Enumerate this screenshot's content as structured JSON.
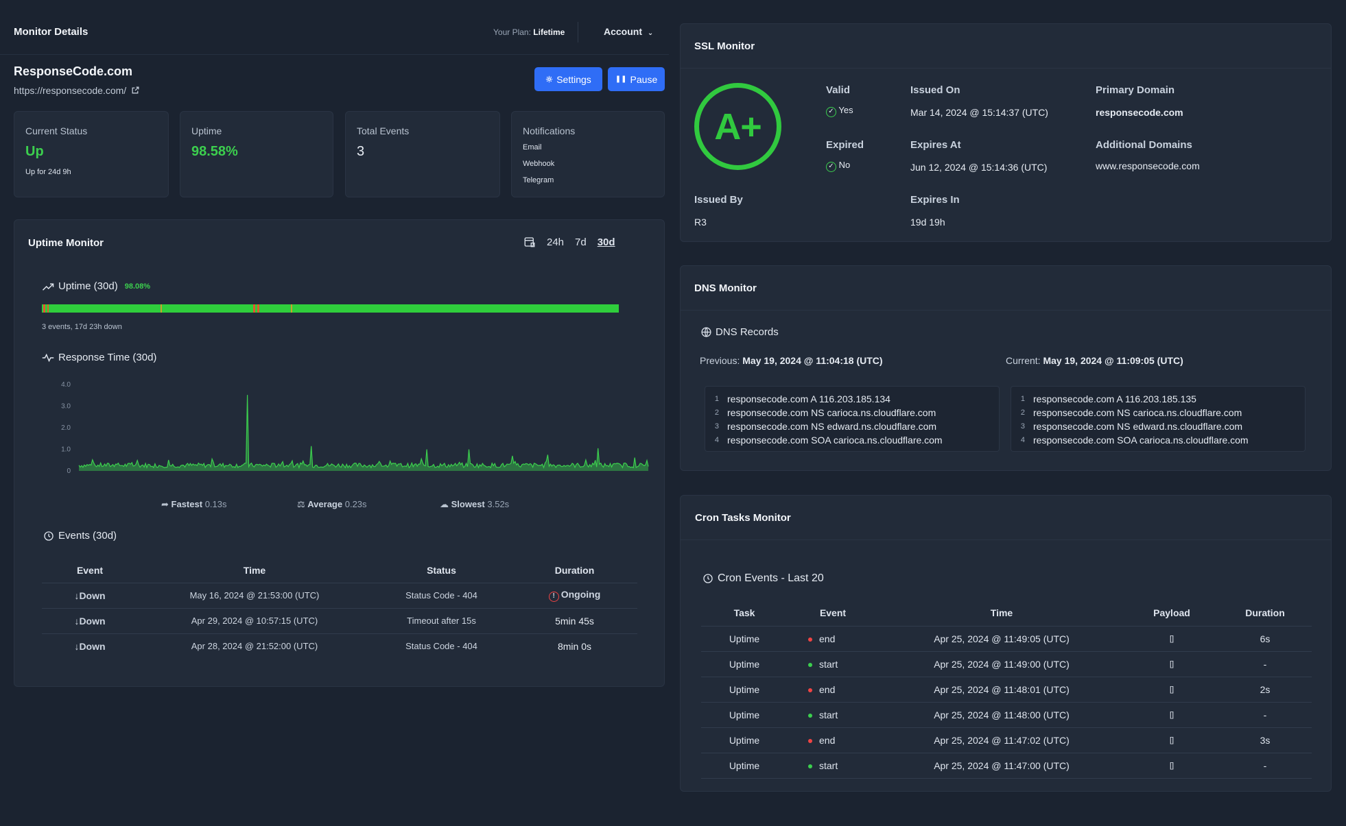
{
  "header": {
    "title": "Monitor Details",
    "plan_prefix": "Your Plan:",
    "plan_name": "Lifetime",
    "account_label": "Account"
  },
  "monitor": {
    "name": "ResponseCode.com",
    "url": "https://responsecode.com/",
    "settings_label": "Settings",
    "pause_label": "Pause"
  },
  "stats": {
    "current_status": {
      "label": "Current Status",
      "value": "Up",
      "sub": "Up for 24d 9h"
    },
    "uptime": {
      "label": "Uptime",
      "value": "98.58%"
    },
    "total_events": {
      "label": "Total Events",
      "value": "3"
    },
    "notifications": {
      "label": "Notifications",
      "items": [
        "Email",
        "Webhook",
        "Telegram"
      ]
    }
  },
  "uptime_monitor": {
    "title": "Uptime Monitor",
    "ranges": [
      "24h",
      "7d",
      "30d"
    ],
    "selected_range": "30d",
    "uptime_title": "Uptime (30d)",
    "uptime_pct": "98.08%",
    "uptime_fraction": 0.9808,
    "down_summary": "3 events, 17d 23h down",
    "response_title": "Response Time (30d)",
    "fastest_label": "Fastest",
    "fastest_value": "0.13s",
    "average_label": "Average",
    "average_value": "0.23s",
    "slowest_label": "Slowest",
    "slowest_value": "3.52s"
  },
  "chart_data": {
    "type": "area",
    "title": "Response Time (30d)",
    "ylim": [
      0,
      4.0
    ],
    "yticks": [
      "4.0",
      "3.0",
      "2.0",
      "1.0",
      "0"
    ],
    "color": "#3ccf4e",
    "spikes": [
      {
        "at": 0.297,
        "value": 3.52
      },
      {
        "at": 0.686,
        "value": 1.0
      },
      {
        "at": 0.408,
        "value": 1.15
      },
      {
        "at": 0.611,
        "value": 1.0
      },
      {
        "at": 0.911,
        "value": 1.05
      },
      {
        "at": 0.823,
        "value": 0.75
      },
      {
        "at": 0.762,
        "value": 0.7
      }
    ],
    "baseline": 0.25
  },
  "events": {
    "title": "Events (30d)",
    "headers": [
      "Event",
      "Time",
      "Status",
      "Duration"
    ],
    "rows": [
      {
        "event": "Down",
        "time": "May 16, 2024 @ 21:53:00 (UTC)",
        "status": "Status Code - 404",
        "duration": "Ongoing",
        "ongoing": true
      },
      {
        "event": "Down",
        "time": "Apr 29, 2024 @ 10:57:15 (UTC)",
        "status": "Timeout after 15s",
        "duration": "5min 45s",
        "ongoing": false
      },
      {
        "event": "Down",
        "time": "Apr 28, 2024 @ 21:52:00 (UTC)",
        "status": "Status Code - 404",
        "duration": "8min 0s",
        "ongoing": false
      }
    ]
  },
  "ssl": {
    "title": "SSL Monitor",
    "grade": "A+",
    "valid_label": "Valid",
    "valid_value": "Yes",
    "expired_label": "Expired",
    "expired_value": "No",
    "issued_on_label": "Issued On",
    "issued_on_value": "Mar 14, 2024 @ 15:14:37 (UTC)",
    "expires_at_label": "Expires At",
    "expires_at_value": "Jun 12, 2024 @ 15:14:36 (UTC)",
    "primary_domain_label": "Primary Domain",
    "primary_domain_value": "responsecode.com",
    "additional_domains_label": "Additional Domains",
    "additional_domains_value": "www.responsecode.com",
    "issued_by_label": "Issued By",
    "issued_by_value": "R3",
    "expires_in_label": "Expires In",
    "expires_in_value": "19d 19h"
  },
  "dns": {
    "title": "DNS Monitor",
    "records_title": "DNS Records",
    "previous_label": "Previous:",
    "previous_time": "May 19, 2024 @ 11:04:18 (UTC)",
    "current_label": "Current:",
    "current_time": "May 19, 2024 @ 11:09:05 (UTC)",
    "previous_records": [
      "responsecode.com A 116.203.185.134",
      "responsecode.com NS carioca.ns.cloudflare.com",
      "responsecode.com NS edward.ns.cloudflare.com",
      "responsecode.com SOA carioca.ns.cloudflare.com"
    ],
    "current_records": [
      "responsecode.com A 116.203.185.135",
      "responsecode.com NS carioca.ns.cloudflare.com",
      "responsecode.com NS edward.ns.cloudflare.com",
      "responsecode.com SOA carioca.ns.cloudflare.com"
    ]
  },
  "cron": {
    "title": "Cron Tasks Monitor",
    "events_title": "Cron Events - Last 20",
    "headers": [
      "Task",
      "Event",
      "Time",
      "Payload",
      "Duration"
    ],
    "rows": [
      {
        "task": "Uptime",
        "event": "end",
        "time": "Apr 25, 2024 @ 11:49:05 (UTC)",
        "payload": "[]",
        "duration": "6s"
      },
      {
        "task": "Uptime",
        "event": "start",
        "time": "Apr 25, 2024 @ 11:49:00 (UTC)",
        "payload": "[]",
        "duration": "-"
      },
      {
        "task": "Uptime",
        "event": "end",
        "time": "Apr 25, 2024 @ 11:48:01 (UTC)",
        "payload": "[]",
        "duration": "2s"
      },
      {
        "task": "Uptime",
        "event": "start",
        "time": "Apr 25, 2024 @ 11:48:00 (UTC)",
        "payload": "[]",
        "duration": "-"
      },
      {
        "task": "Uptime",
        "event": "end",
        "time": "Apr 25, 2024 @ 11:47:02 (UTC)",
        "payload": "[]",
        "duration": "3s"
      },
      {
        "task": "Uptime",
        "event": "start",
        "time": "Apr 25, 2024 @ 11:47:00 (UTC)",
        "payload": "[]",
        "duration": "-"
      }
    ]
  },
  "colors": {
    "background": "#1b2330",
    "card": "#222b39",
    "accent": "#2f6df6",
    "up": "#3ccf4e",
    "down": "#ef4444"
  }
}
